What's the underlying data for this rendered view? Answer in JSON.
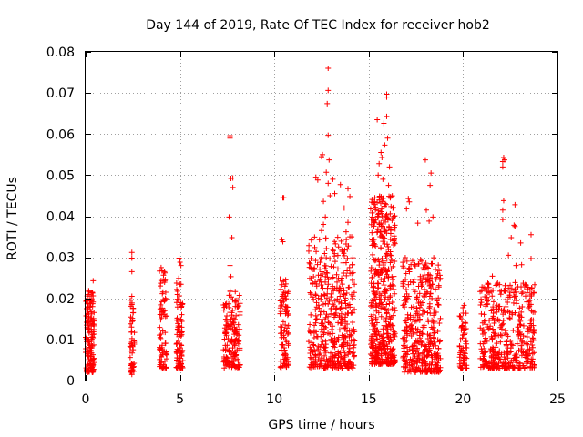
{
  "chart_data": {
    "type": "scatter",
    "title": "Day 144 of 2019, Rate Of TEC Index for receiver hob2",
    "xlabel": "GPS time / hours",
    "ylabel": "ROTI / TECUs",
    "xlim": [
      0,
      25
    ],
    "ylim": [
      0,
      0.08
    ],
    "x_ticks": [
      0,
      5,
      10,
      15,
      20,
      25
    ],
    "x_tick_labels": [
      "0",
      "5",
      "10",
      "15",
      "20",
      "25"
    ],
    "y_ticks": [
      0,
      0.01,
      0.02,
      0.03,
      0.04,
      0.05,
      0.06,
      0.07,
      0.08
    ],
    "y_tick_labels": [
      "0",
      "0.01",
      "0.02",
      "0.03",
      "0.04",
      "0.05",
      "0.06",
      "0.07",
      "0.08"
    ],
    "grid": true,
    "marker": "+",
    "color": "#ff0000",
    "series": [
      {
        "name": "ROTI",
        "clusters": [
          {
            "x": [
              0.0,
              0.45
            ],
            "y": [
              0.002,
              0.022
            ],
            "n": 140,
            "spikes": [
              [
                0.4,
                0.0243
              ],
              [
                0.35,
                0.0215
              ],
              [
                0.05,
                0.0175
              ]
            ]
          },
          {
            "x": [
              2.35,
              2.6
            ],
            "y": [
              0.002,
              0.02
            ],
            "n": 50,
            "spikes": [
              [
                2.45,
                0.0312
              ],
              [
                2.45,
                0.0298
              ],
              [
                2.45,
                0.0265
              ],
              [
                2.45,
                0.0205
              ],
              [
                2.45,
                0.0185
              ],
              [
                2.45,
                0.0015
              ]
            ]
          },
          {
            "x": [
              3.9,
              4.3
            ],
            "y": [
              0.003,
              0.027
            ],
            "n": 80,
            "spikes": [
              [
                4.0,
                0.0275
              ],
              [
                4.2,
                0.0262
              ]
            ]
          },
          {
            "x": [
              4.8,
              5.15
            ],
            "y": [
              0.003,
              0.025
            ],
            "n": 95,
            "spikes": [
              [
                4.95,
                0.0298
              ],
              [
                5.0,
                0.0288
              ],
              [
                5.05,
                0.028
              ]
            ]
          },
          {
            "x": [
              7.3,
              8.2
            ],
            "y": [
              0.003,
              0.022
            ],
            "n": 160,
            "spikes": [
              [
                7.65,
                0.0596
              ],
              [
                7.65,
                0.059
              ],
              [
                7.7,
                0.0492
              ],
              [
                7.8,
                0.0493
              ],
              [
                7.8,
                0.047
              ],
              [
                7.6,
                0.0398
              ],
              [
                7.75,
                0.0348
              ],
              [
                7.65,
                0.028
              ],
              [
                7.7,
                0.0253
              ]
            ]
          },
          {
            "x": [
              10.3,
              10.75
            ],
            "y": [
              0.003,
              0.025
            ],
            "n": 90,
            "spikes": [
              [
                10.45,
                0.0445
              ],
              [
                10.5,
                0.0445
              ],
              [
                10.4,
                0.0343
              ],
              [
                10.45,
                0.0338
              ]
            ]
          },
          {
            "x": [
              11.8,
              14.25
            ],
            "y": [
              0.003,
              0.035
            ],
            "n": 460,
            "spikes": [
              [
                12.85,
                0.076
              ],
              [
                12.85,
                0.0706
              ],
              [
                12.8,
                0.0674
              ],
              [
                12.85,
                0.0597
              ],
              [
                12.55,
                0.055
              ],
              [
                12.5,
                0.0545
              ],
              [
                12.9,
                0.0537
              ],
              [
                12.2,
                0.0495
              ],
              [
                12.3,
                0.0488
              ],
              [
                12.75,
                0.0507
              ],
              [
                13.1,
                0.049
              ],
              [
                12.85,
                0.048
              ],
              [
                13.5,
                0.0477
              ],
              [
                13.9,
                0.0467
              ],
              [
                14.0,
                0.0448
              ],
              [
                13.2,
                0.0455
              ],
              [
                13.7,
                0.042
              ],
              [
                12.95,
                0.045
              ],
              [
                12.6,
                0.0436
              ],
              [
                13.9,
                0.0385
              ],
              [
                13.8,
                0.0362
              ],
              [
                14.0,
                0.035
              ],
              [
                12.7,
                0.0398
              ],
              [
                12.6,
                0.038
              ],
              [
                12.5,
                0.0365
              ]
            ]
          },
          {
            "x": [
              15.1,
              16.4
            ],
            "y": [
              0.004,
              0.045
            ],
            "n": 470,
            "spikes": [
              [
                15.95,
                0.0697
              ],
              [
                15.95,
                0.069
              ],
              [
                15.95,
                0.0643
              ],
              [
                15.45,
                0.0635
              ],
              [
                15.8,
                0.0626
              ],
              [
                16.0,
                0.059
              ],
              [
                15.85,
                0.0573
              ],
              [
                15.65,
                0.0555
              ],
              [
                15.7,
                0.0543
              ],
              [
                15.55,
                0.0528
              ],
              [
                16.1,
                0.052
              ],
              [
                15.5,
                0.05
              ],
              [
                15.75,
                0.049
              ],
              [
                16.05,
                0.0475
              ]
            ]
          },
          {
            "x": [
              16.8,
              18.8
            ],
            "y": [
              0.002,
              0.03
            ],
            "n": 400,
            "spikes": [
              [
                18.0,
                0.0537
              ],
              [
                18.3,
                0.0505
              ],
              [
                18.25,
                0.0475
              ],
              [
                17.1,
                0.0443
              ],
              [
                17.15,
                0.0435
              ],
              [
                17.0,
                0.0418
              ],
              [
                18.05,
                0.0415
              ],
              [
                18.4,
                0.0398
              ],
              [
                18.2,
                0.0388
              ],
              [
                17.6,
                0.0383
              ]
            ]
          },
          {
            "x": [
              19.8,
              20.2
            ],
            "y": [
              0.003,
              0.018
            ],
            "n": 70,
            "spikes": [
              [
                20.05,
                0.0183
              ]
            ]
          },
          {
            "x": [
              20.9,
              23.8
            ],
            "y": [
              0.003,
              0.024
            ],
            "n": 420,
            "spikes": [
              [
                22.15,
                0.0543
              ],
              [
                22.2,
                0.0537
              ],
              [
                22.1,
                0.0533
              ],
              [
                22.1,
                0.052
              ],
              [
                22.15,
                0.0438
              ],
              [
                22.1,
                0.0415
              ],
              [
                22.1,
                0.0392
              ],
              [
                22.75,
                0.0428
              ],
              [
                22.7,
                0.0378
              ],
              [
                22.75,
                0.0375
              ],
              [
                22.55,
                0.0348
              ],
              [
                23.05,
                0.0335
              ],
              [
                23.6,
                0.0355
              ],
              [
                22.4,
                0.0305
              ],
              [
                23.6,
                0.0297
              ],
              [
                23.1,
                0.0282
              ],
              [
                22.8,
                0.028
              ],
              [
                21.55,
                0.0254
              ]
            ]
          }
        ]
      }
    ]
  }
}
